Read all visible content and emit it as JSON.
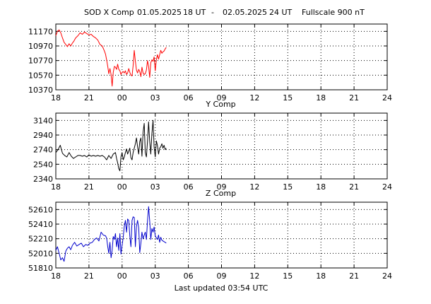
{
  "title": {
    "station": "SOD X Comp",
    "start_date": "01.05.2025",
    "start_hour": "18 UT",
    "dash": "-",
    "end_date": "02.05.2025",
    "end_hour": "24 UT",
    "fullscale": "Fullscale 900 nT"
  },
  "footer": "Last updated  03:54 UTC",
  "chart_data": [
    {
      "type": "line",
      "title": "SOD X Comp",
      "xlabel": "",
      "ylabel": "",
      "x_unit": "hours from 18 UT",
      "x_ticks": [
        "18",
        "21",
        "00",
        "03",
        "06",
        "09",
        "12",
        "15",
        "18",
        "21",
        "24"
      ],
      "xlim": [
        0,
        30
      ],
      "y_ticks": [
        10370,
        10570,
        10770,
        10970,
        11170
      ],
      "ylim": [
        10370,
        11270
      ],
      "grid": true,
      "color": "#ff0000",
      "series": [
        {
          "x": [
            0.0,
            0.15,
            0.3,
            0.45,
            0.6,
            0.75,
            0.9,
            1.05,
            1.2,
            1.35,
            1.5,
            1.65,
            1.8,
            2.0,
            2.2,
            2.4,
            2.6,
            2.8,
            3.0,
            3.2,
            3.4,
            3.6,
            3.8,
            4.0,
            4.2,
            4.4,
            4.5,
            4.6,
            4.7,
            4.8,
            4.9,
            5.0,
            5.1,
            5.2,
            5.3,
            5.4,
            5.5,
            5.6,
            5.7,
            5.8,
            5.9,
            6.0,
            6.1,
            6.2,
            6.3,
            6.4,
            6.5,
            6.6,
            6.7,
            6.8,
            6.9,
            7.0,
            7.1,
            7.2,
            7.3,
            7.4,
            7.5,
            7.6,
            7.7,
            7.8,
            7.9,
            8.0,
            8.1,
            8.2,
            8.3,
            8.4,
            8.5,
            8.6,
            8.7,
            8.8,
            8.9,
            9.0,
            9.1,
            9.2,
            9.3,
            9.4,
            9.5,
            9.6,
            9.7,
            9.8,
            9.9,
            10.0
          ],
          "values": [
            11110,
            11170,
            11190,
            11150,
            11080,
            11020,
            10990,
            10960,
            11000,
            10970,
            11010,
            11040,
            11080,
            11110,
            11150,
            11130,
            11160,
            11140,
            11120,
            11130,
            11100,
            11080,
            11050,
            10990,
            10970,
            10900,
            10860,
            10780,
            10690,
            10590,
            10660,
            10580,
            10420,
            10610,
            10690,
            10680,
            10650,
            10720,
            10650,
            10630,
            10580,
            10610,
            10620,
            10600,
            10630,
            10580,
            10600,
            10660,
            10610,
            10570,
            10560,
            10700,
            10910,
            10760,
            10640,
            10600,
            10650,
            10620,
            10550,
            10680,
            10600,
            10580,
            10590,
            10640,
            10770,
            10690,
            10540,
            10740,
            10780,
            10760,
            10820,
            10630,
            10780,
            10850,
            10790,
            10850,
            10910,
            10870,
            10890,
            10900,
            10930,
            10950
          ]
        }
      ]
    },
    {
      "type": "line",
      "title": "Y Comp",
      "xlabel": "",
      "ylabel": "",
      "x_unit": "hours from 18 UT",
      "x_ticks": [
        "18",
        "21",
        "00",
        "03",
        "06",
        "09",
        "12",
        "15",
        "18",
        "21",
        "24"
      ],
      "xlim": [
        0,
        30
      ],
      "y_ticks": [
        2340,
        2540,
        2740,
        2940,
        3140
      ],
      "ylim": [
        2340,
        3240
      ],
      "grid": true,
      "color": "#000000",
      "series": [
        {
          "x": [
            0.0,
            0.2,
            0.4,
            0.6,
            0.8,
            1.0,
            1.2,
            1.4,
            1.6,
            1.8,
            2.0,
            2.2,
            2.4,
            2.6,
            2.8,
            3.0,
            3.2,
            3.4,
            3.6,
            3.8,
            4.0,
            4.2,
            4.4,
            4.6,
            4.8,
            5.0,
            5.2,
            5.4,
            5.5,
            5.6,
            5.7,
            5.8,
            5.9,
            6.0,
            6.1,
            6.2,
            6.3,
            6.4,
            6.5,
            6.6,
            6.7,
            6.8,
            6.9,
            7.0,
            7.1,
            7.2,
            7.3,
            7.4,
            7.5,
            7.6,
            7.7,
            7.8,
            7.9,
            8.0,
            8.1,
            8.2,
            8.3,
            8.4,
            8.5,
            8.6,
            8.7,
            8.8,
            8.9,
            9.0,
            9.1,
            9.2,
            9.3,
            9.4,
            9.5,
            9.6,
            9.7,
            9.8,
            9.9,
            10.0
          ],
          "values": [
            2700,
            2740,
            2800,
            2690,
            2660,
            2640,
            2700,
            2650,
            2620,
            2640,
            2660,
            2660,
            2650,
            2660,
            2640,
            2670,
            2650,
            2660,
            2650,
            2660,
            2650,
            2660,
            2640,
            2600,
            2660,
            2620,
            2680,
            2700,
            2620,
            2560,
            2480,
            2450,
            2640,
            2700,
            2600,
            2640,
            2700,
            2750,
            2680,
            2720,
            2760,
            2630,
            2600,
            2700,
            2760,
            2820,
            2900,
            2780,
            2680,
            2850,
            2900,
            2650,
            2980,
            3100,
            2700,
            2640,
            2860,
            3120,
            2850,
            2680,
            2960,
            3140,
            2780,
            2640,
            2860,
            2800,
            2680,
            2760,
            2780,
            2820,
            2760,
            2800,
            2740,
            2760
          ]
        }
      ]
    },
    {
      "type": "line",
      "title": "Z Comp",
      "xlabel": "",
      "ylabel": "",
      "x_unit": "hours from 18 UT",
      "x_ticks": [
        "18",
        "21",
        "00",
        "03",
        "06",
        "09",
        "12",
        "15",
        "18",
        "21",
        "24"
      ],
      "xlim": [
        0,
        30
      ],
      "y_ticks": [
        51810,
        52010,
        52210,
        52410,
        52610
      ],
      "ylim": [
        51810,
        52710
      ],
      "grid": true,
      "color": "#0000cc",
      "series": [
        {
          "x": [
            0.0,
            0.15,
            0.3,
            0.45,
            0.6,
            0.75,
            0.9,
            1.05,
            1.2,
            1.35,
            1.5,
            1.7,
            1.9,
            2.1,
            2.3,
            2.5,
            2.7,
            2.9,
            3.1,
            3.3,
            3.5,
            3.7,
            3.9,
            4.1,
            4.3,
            4.5,
            4.6,
            4.7,
            4.8,
            4.9,
            5.0,
            5.1,
            5.2,
            5.3,
            5.4,
            5.5,
            5.6,
            5.7,
            5.8,
            5.9,
            6.0,
            6.1,
            6.2,
            6.3,
            6.4,
            6.5,
            6.6,
            6.7,
            6.8,
            6.9,
            7.0,
            7.1,
            7.2,
            7.3,
            7.4,
            7.5,
            7.6,
            7.7,
            7.8,
            7.9,
            8.0,
            8.1,
            8.2,
            8.3,
            8.4,
            8.5,
            8.6,
            8.7,
            8.8,
            8.9,
            9.0,
            9.1,
            9.2,
            9.3,
            9.4,
            9.5,
            9.6,
            9.7,
            9.8,
            9.9,
            10.0
          ],
          "values": [
            52050,
            52100,
            52010,
            51920,
            51950,
            51900,
            52040,
            52080,
            52100,
            52060,
            52120,
            52160,
            52110,
            52130,
            52150,
            52100,
            52130,
            52120,
            52150,
            52160,
            52200,
            52220,
            52180,
            52300,
            52260,
            52250,
            52220,
            52100,
            52010,
            52160,
            51950,
            52050,
            52240,
            52200,
            52280,
            52100,
            52220,
            52050,
            52280,
            52000,
            52120,
            52230,
            52380,
            52460,
            52300,
            52480,
            52460,
            52250,
            52100,
            52460,
            52510,
            52500,
            52100,
            52380,
            52460,
            52360,
            52020,
            52150,
            52300,
            52210,
            52260,
            52300,
            52200,
            52460,
            52650,
            52450,
            52200,
            52350,
            52300,
            52370,
            52250,
            52220,
            52200,
            52260,
            52160,
            52230,
            52190,
            52180,
            52170,
            52160,
            52150
          ]
        }
      ]
    }
  ]
}
